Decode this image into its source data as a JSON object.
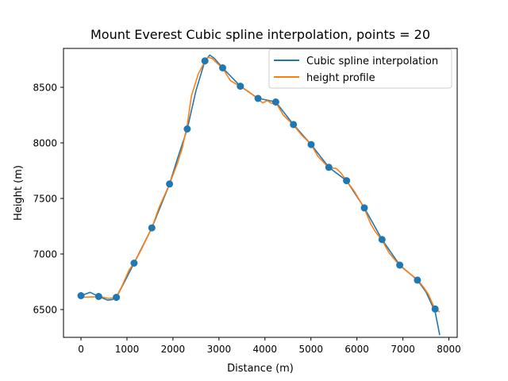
{
  "chart_data": {
    "type": "line",
    "title": "Mount Everest Cubic spline interpolation, points = 20",
    "xlabel": "Distance (m)",
    "ylabel": "Height (m)",
    "xlim": [
      -380,
      8180
    ],
    "ylim": [
      6250,
      8850
    ],
    "xticks": [
      0,
      1000,
      2000,
      3000,
      4000,
      5000,
      6000,
      7000,
      8000
    ],
    "yticks": [
      6500,
      7000,
      7500,
      8000,
      8500
    ],
    "grid": false,
    "legend_position": "upper right",
    "colors": {
      "spline": "#1f77b4",
      "profile": "#ff7f0e",
      "points": "#1f77b4"
    },
    "points": {
      "x": [
        0,
        385,
        770,
        1155,
        1540,
        1925,
        2310,
        2695,
        3080,
        3465,
        3850,
        4235,
        4620,
        5005,
        5390,
        5775,
        6160,
        6545,
        6930,
        7315,
        7700
      ],
      "y": [
        6625,
        6618,
        6610,
        6918,
        7235,
        7630,
        8125,
        8738,
        8675,
        8510,
        8400,
        8368,
        8165,
        7985,
        7780,
        7660,
        7415,
        7130,
        6900,
        6765,
        6505
      ]
    },
    "series": [
      {
        "name": "Cubic spline interpolation",
        "x": [
          0,
          200,
          385,
          580,
          680,
          770,
          960,
          1155,
          1540,
          1925,
          2100,
          2310,
          2500,
          2695,
          2800,
          2900,
          3080,
          3465,
          3850,
          4050,
          4235,
          4620,
          5005,
          5390,
          5775,
          6160,
          6545,
          6930,
          7315,
          7500,
          7700,
          7800
        ],
        "y": [
          6625,
          6655,
          6618,
          6585,
          6590,
          6610,
          6760,
          6918,
          7235,
          7630,
          7860,
          8125,
          8470,
          8738,
          8790,
          8760,
          8675,
          8510,
          8400,
          8385,
          8368,
          8165,
          7985,
          7780,
          7660,
          7415,
          7130,
          6900,
          6765,
          6660,
          6480,
          6270
        ]
      },
      {
        "name": "height profile",
        "x": [
          0,
          150,
          300,
          385,
          500,
          600,
          700,
          770,
          900,
          1050,
          1155,
          1300,
          1540,
          1700,
          1925,
          2100,
          2200,
          2310,
          2400,
          2550,
          2695,
          2760,
          2850,
          2950,
          3080,
          3250,
          3465,
          3650,
          3850,
          3950,
          4050,
          4150,
          4235,
          4400,
          4620,
          4800,
          5005,
          5150,
          5390,
          5550,
          5650,
          5775,
          5950,
          6160,
          6300,
          6400,
          6545,
          6700,
          6930,
          7100,
          7315,
          7450,
          7550,
          7700,
          7800
        ],
        "y": [
          6610,
          6612,
          6615,
          6620,
          6610,
          6600,
          6605,
          6612,
          6720,
          6860,
          6918,
          7030,
          7235,
          7420,
          7630,
          7820,
          7950,
          8160,
          8420,
          8620,
          8735,
          8770,
          8760,
          8720,
          8672,
          8560,
          8508,
          8460,
          8395,
          8360,
          8380,
          8355,
          8365,
          8250,
          8160,
          8070,
          7985,
          7880,
          7775,
          7770,
          7730,
          7660,
          7560,
          7410,
          7270,
          7200,
          7125,
          7010,
          6895,
          6840,
          6770,
          6700,
          6640,
          6500,
          6480
        ]
      }
    ]
  }
}
